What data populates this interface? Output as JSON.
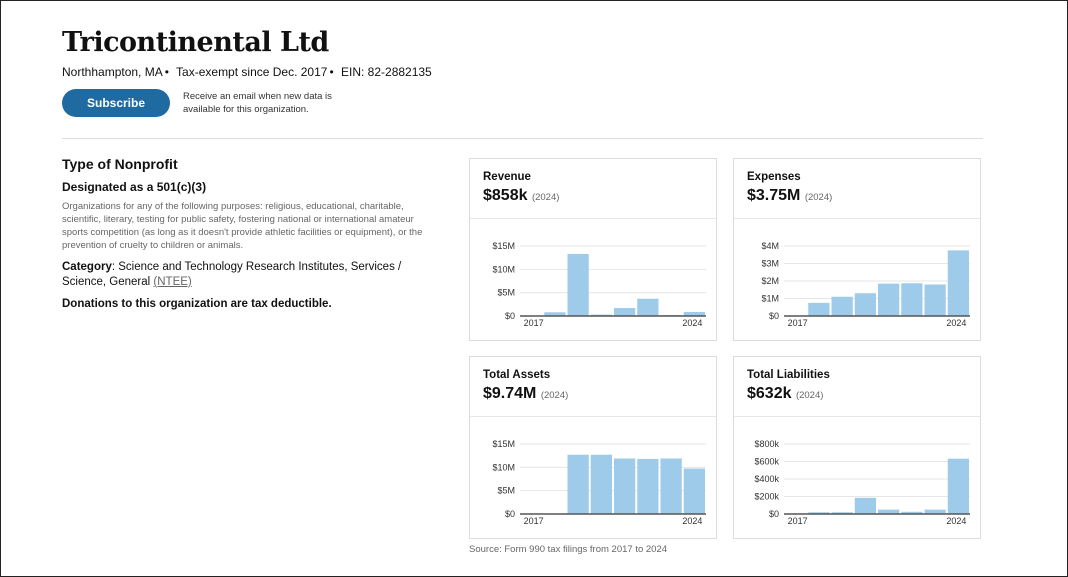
{
  "org": {
    "name": "Tricontinental Ltd",
    "location": "Northhampton, MA",
    "tax_exempt": "Tax-exempt since Dec. 2017",
    "ein": "EIN: 82-2882135",
    "sep": "•"
  },
  "subscribe": {
    "label": "Subscribe",
    "note": "Receive an email when new data is available for this organization."
  },
  "nonprofit": {
    "heading": "Type of Nonprofit",
    "designation": "Designated as a 501(c)(3)",
    "purposes": "Organizations for any of the following purposes: religious, educational, charitable, scientific, literary, testing for public safety, fostering national or international amateur sports competition (as long as it doesn't provide athletic facilities or equipment), or the prevention of cruelty to children or animals.",
    "category_label": "Category",
    "category_value": ": Science and Technology Research Institutes, Services / Science, General ",
    "ntee_link": "(NTEE)",
    "deductible": "Donations to this organization are tax deductible."
  },
  "source": "Source: Form 990 tax filings from 2017 to 2024",
  "colors": {
    "bar": "#9ecbea",
    "baseline": "#555555",
    "grid": "#e6e6e6",
    "subscribe": "#1f6aa1"
  },
  "chart_data": [
    {
      "type": "bar",
      "title": "Revenue",
      "headline": "$858k",
      "year_note": "(2024)",
      "x": [
        2017,
        2018,
        2019,
        2020,
        2021,
        2022,
        2023,
        2024
      ],
      "values": [
        0,
        800000,
        13300000,
        300000,
        1700000,
        3700000,
        200000,
        858000
      ],
      "yticks": [
        "$0",
        "$5M",
        "$10M",
        "$15M"
      ],
      "ytick_values": [
        0,
        5000000,
        10000000,
        15000000
      ],
      "ylim": [
        0,
        15000000
      ],
      "x_tick_labels": [
        "2017",
        "2024"
      ]
    },
    {
      "type": "bar",
      "title": "Expenses",
      "headline": "$3.75M",
      "year_note": "(2024)",
      "x": [
        2017,
        2018,
        2019,
        2020,
        2021,
        2022,
        2023,
        2024
      ],
      "values": [
        0,
        750000,
        1100000,
        1300000,
        1850000,
        1870000,
        1800000,
        3750000
      ],
      "yticks": [
        "$0",
        "$1M",
        "$2M",
        "$3M",
        "$4M"
      ],
      "ytick_values": [
        0,
        1000000,
        2000000,
        3000000,
        4000000
      ],
      "ylim": [
        0,
        4000000
      ],
      "x_tick_labels": [
        "2017",
        "2024"
      ]
    },
    {
      "type": "bar",
      "title": "Total Assets",
      "headline": "$9.74M",
      "year_note": "(2024)",
      "x": [
        2017,
        2018,
        2019,
        2020,
        2021,
        2022,
        2023,
        2024
      ],
      "values": [
        0,
        0,
        12700000,
        12700000,
        11900000,
        11800000,
        11900000,
        9740000
      ],
      "yticks": [
        "$0",
        "$5M",
        "$10M",
        "$15M"
      ],
      "ytick_values": [
        0,
        5000000,
        10000000,
        15000000
      ],
      "ylim": [
        0,
        15000000
      ],
      "x_tick_labels": [
        "2017",
        "2024"
      ]
    },
    {
      "type": "bar",
      "title": "Total Liabilities",
      "headline": "$632k",
      "year_note": "(2024)",
      "x": [
        2017,
        2018,
        2019,
        2020,
        2021,
        2022,
        2023,
        2024
      ],
      "values": [
        0,
        20000,
        20000,
        185000,
        50000,
        25000,
        50000,
        632000
      ],
      "yticks": [
        "$0",
        "$200k",
        "$400k",
        "$600k",
        "$800k"
      ],
      "ytick_values": [
        0,
        200000,
        400000,
        600000,
        800000
      ],
      "ylim": [
        0,
        800000
      ],
      "x_tick_labels": [
        "2017",
        "2024"
      ]
    }
  ]
}
